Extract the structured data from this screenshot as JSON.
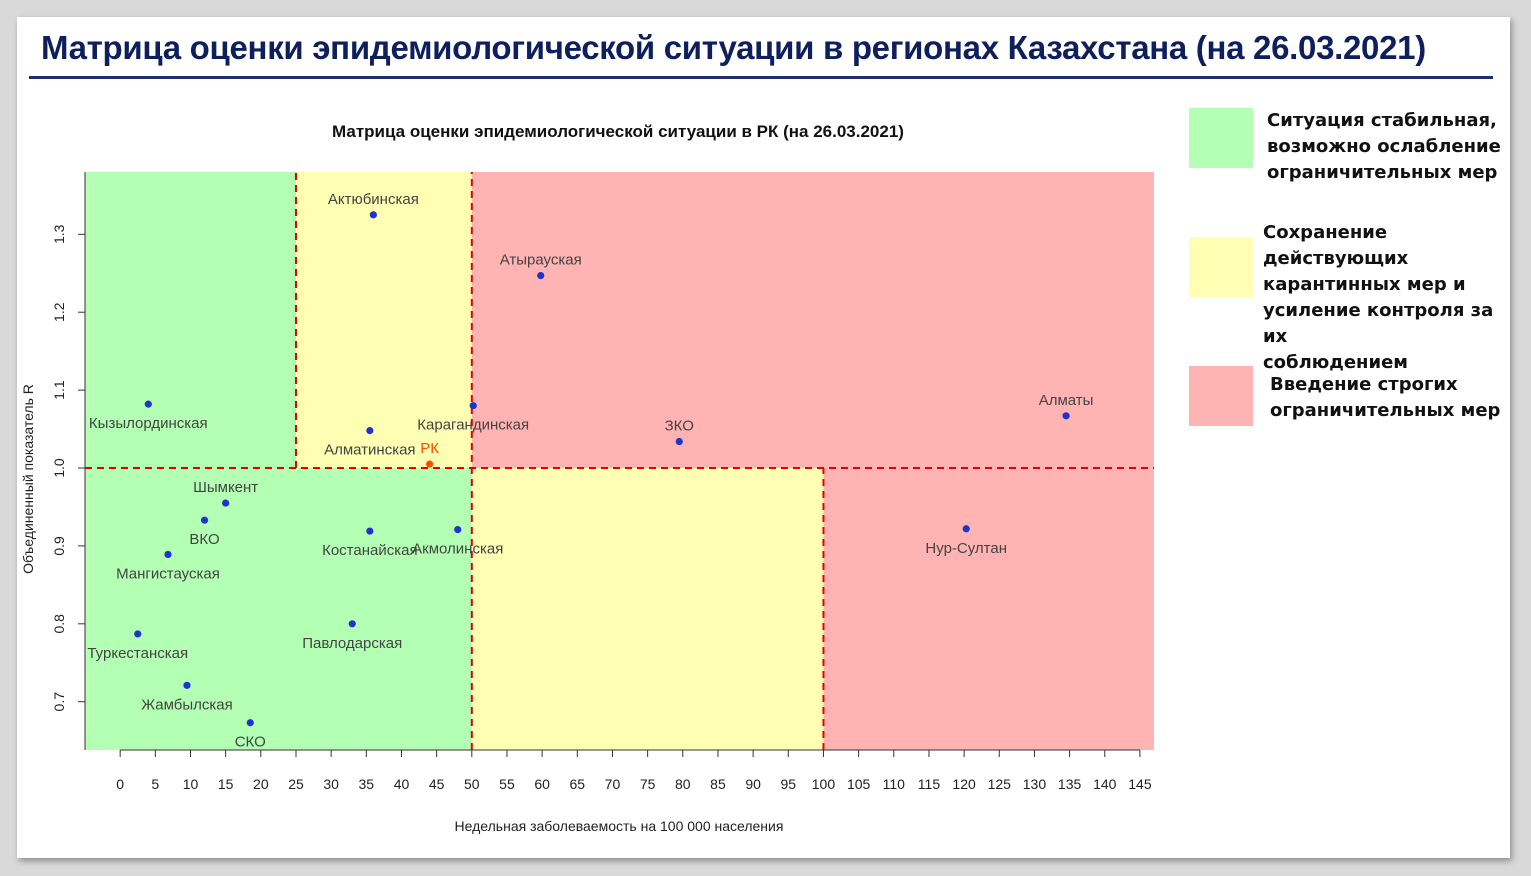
{
  "slide": {
    "title": "Матрица оценки эпидемиологической ситуации в регионах Казахстана (на 26.03.2021)"
  },
  "legend": [
    {
      "color": "#b3ffb3",
      "text": "Ситуация стабильная,\nвозможно ослабление\nограничительных мер"
    },
    {
      "color": "#ffffb3",
      "text": "Сохранение действующих\nкарантинных мер и\nусиление контроля за их\nсоблюдением"
    },
    {
      "color": "#ffb3b3",
      "text": "Введение строгих\nограничительных мер"
    }
  ],
  "chart_data": {
    "type": "scatter",
    "title": "Матрица оценки эпидемиологической ситуации в РК (на 26.03.2021)",
    "xlabel": "Недельная заболеваемость на 100 000 населения",
    "ylabel": "Объединенный показатель R",
    "xlim": [
      -5,
      147
    ],
    "ylim": [
      0.638,
      1.38
    ],
    "x_ticks": [
      0,
      5,
      10,
      15,
      20,
      25,
      30,
      35,
      40,
      45,
      50,
      55,
      60,
      65,
      70,
      75,
      80,
      85,
      90,
      95,
      100,
      105,
      110,
      115,
      120,
      125,
      130,
      135,
      140,
      145
    ],
    "y_ticks": [
      0.7,
      0.8,
      0.9,
      1.0,
      1.1,
      1.2,
      1.3
    ],
    "zones": [
      {
        "x": [
          -5,
          25
        ],
        "y": [
          1.0,
          1.38
        ],
        "color": "#b3ffb3"
      },
      {
        "x": [
          25,
          50
        ],
        "y": [
          1.0,
          1.38
        ],
        "color": "#ffffb3"
      },
      {
        "x": [
          50,
          147
        ],
        "y": [
          1.0,
          1.38
        ],
        "color": "#ffb3b3"
      },
      {
        "x": [
          -5,
          50
        ],
        "y": [
          0.638,
          1.0
        ],
        "color": "#b3ffb3"
      },
      {
        "x": [
          50,
          100
        ],
        "y": [
          0.638,
          1.0
        ],
        "color": "#ffffb3"
      },
      {
        "x": [
          100,
          147
        ],
        "y": [
          0.638,
          1.0
        ],
        "color": "#ffb3b3"
      }
    ],
    "threshold_lines": {
      "horizontal": [
        1.0
      ],
      "vertical": [
        {
          "x": 25,
          "y": [
            1.0,
            1.38
          ]
        },
        {
          "x": 50,
          "y": [
            0.638,
            1.38
          ]
        },
        {
          "x": 100,
          "y": [
            0.638,
            1.0
          ]
        }
      ],
      "color": "#e60000"
    },
    "points": [
      {
        "name": "Актюбинская",
        "x": 36.0,
        "y": 1.325,
        "label_pos": "above"
      },
      {
        "name": "Атырауская",
        "x": 59.8,
        "y": 1.247,
        "label_pos": "above"
      },
      {
        "name": "Кызылординская",
        "x": 4.0,
        "y": 1.082,
        "label_pos": "below"
      },
      {
        "name": "Карагандинская",
        "x": 50.2,
        "y": 1.08,
        "label_pos": "below"
      },
      {
        "name": "Алматы",
        "x": 134.5,
        "y": 1.067,
        "label_pos": "above"
      },
      {
        "name": "Алматинская",
        "x": 35.5,
        "y": 1.048,
        "label_pos": "below"
      },
      {
        "name": "ЗКО",
        "x": 79.5,
        "y": 1.034,
        "label_pos": "above"
      },
      {
        "name": "РК",
        "x": 44.0,
        "y": 1.005,
        "label_pos": "above",
        "color": "#ff4d00"
      },
      {
        "name": "Шымкент",
        "x": 15.0,
        "y": 0.955,
        "label_pos": "above"
      },
      {
        "name": "ВКО",
        "x": 12.0,
        "y": 0.933,
        "label_pos": "below"
      },
      {
        "name": "Костанайская",
        "x": 35.5,
        "y": 0.919,
        "label_pos": "below"
      },
      {
        "name": "Акмолинская",
        "x": 48.0,
        "y": 0.921,
        "label_pos": "below"
      },
      {
        "name": "Нур-Султан",
        "x": 120.3,
        "y": 0.922,
        "label_pos": "below"
      },
      {
        "name": "Мангистауская",
        "x": 6.8,
        "y": 0.889,
        "label_pos": "below"
      },
      {
        "name": "Павлодарская",
        "x": 33.0,
        "y": 0.8,
        "label_pos": "below"
      },
      {
        "name": "Туркестанская",
        "x": 2.5,
        "y": 0.787,
        "label_pos": "below"
      },
      {
        "name": "Жамбылская",
        "x": 9.5,
        "y": 0.721,
        "label_pos": "below"
      },
      {
        "name": "СКО",
        "x": 18.5,
        "y": 0.673,
        "label_pos": "below"
      }
    ],
    "point_color": "#2233cc",
    "label_color": "#444444",
    "grid": false,
    "legend": "none"
  }
}
